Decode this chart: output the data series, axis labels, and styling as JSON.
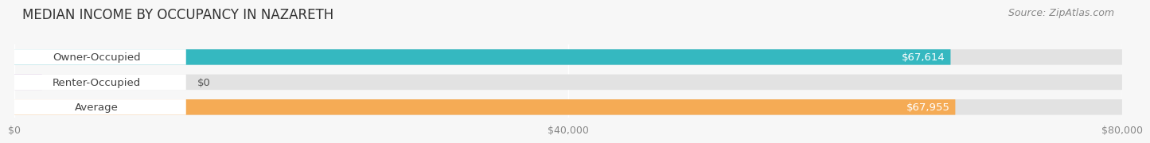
{
  "title": "MEDIAN INCOME BY OCCUPANCY IN NAZARETH",
  "source": "Source: ZipAtlas.com",
  "categories": [
    "Owner-Occupied",
    "Renter-Occupied",
    "Average"
  ],
  "values": [
    67614,
    0,
    67955
  ],
  "bar_colors": [
    "#35b8c0",
    "#c8a8d8",
    "#f5ab55"
  ],
  "bar_labels": [
    "$67,614",
    "$0",
    "$67,955"
  ],
  "xlim": [
    0,
    80000
  ],
  "xtick_values": [
    0,
    40000,
    80000
  ],
  "xtick_labels": [
    "$0",
    "$40,000",
    "$80,000"
  ],
  "background_color": "#f7f7f7",
  "bar_bg_color": "#e2e2e2",
  "title_fontsize": 12,
  "label_fontsize": 9.5,
  "tick_fontsize": 9,
  "source_fontsize": 9
}
